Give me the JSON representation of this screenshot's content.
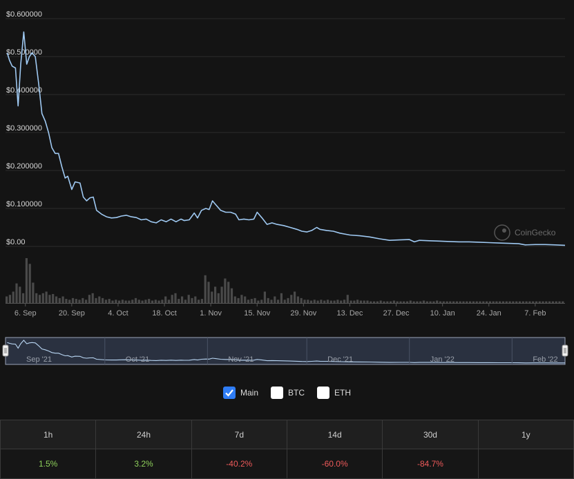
{
  "chart_data": {
    "type": "line",
    "y_tick_labels": [
      "$0.600000",
      "$0.500000",
      "$0.400000",
      "$0.300000",
      "$0.200000",
      "$0.100000",
      "$0.00"
    ],
    "ylim": [
      0,
      0.6
    ],
    "x_tick_labels": [
      "6. Sep",
      "20. Sep",
      "4. Oct",
      "18. Oct",
      "1. Nov",
      "15. Nov",
      "29. Nov",
      "13. Dec",
      "27. Dec",
      "10. Jan",
      "24. Jan",
      "7. Feb"
    ],
    "x_tick_day_index": [
      6,
      20,
      34,
      48,
      62,
      76,
      90,
      104,
      118,
      132,
      146,
      160
    ],
    "x_range_days": [
      0,
      169
    ],
    "grid": true,
    "series": [
      {
        "values": [
          [
            0.5,
            0.51
          ],
          [
            1.2,
            0.49
          ],
          [
            2,
            0.475
          ],
          [
            3,
            0.47
          ],
          [
            3.8,
            0.37
          ],
          [
            4.6,
            0.48
          ],
          [
            5.5,
            0.565
          ],
          [
            6.4,
            0.48
          ],
          [
            7.2,
            0.5
          ],
          [
            8,
            0.51
          ],
          [
            9,
            0.5
          ],
          [
            10,
            0.43
          ],
          [
            11,
            0.35
          ],
          [
            12,
            0.33
          ],
          [
            13,
            0.3
          ],
          [
            14,
            0.26
          ],
          [
            15,
            0.245
          ],
          [
            16,
            0.245
          ],
          [
            17,
            0.21
          ],
          [
            18,
            0.18
          ],
          [
            18.8,
            0.185
          ],
          [
            20,
            0.15
          ],
          [
            21,
            0.17
          ],
          [
            22.5,
            0.167
          ],
          [
            23.5,
            0.13
          ],
          [
            24.5,
            0.12
          ],
          [
            25.5,
            0.128
          ],
          [
            26.5,
            0.13
          ],
          [
            27.5,
            0.095
          ],
          [
            29,
            0.085
          ],
          [
            30.5,
            0.078
          ],
          [
            32,
            0.075
          ],
          [
            33.5,
            0.076
          ],
          [
            35,
            0.08
          ],
          [
            36.5,
            0.082
          ],
          [
            38,
            0.078
          ],
          [
            39.5,
            0.076
          ],
          [
            41,
            0.07
          ],
          [
            42.5,
            0.072
          ],
          [
            44,
            0.065
          ],
          [
            45.5,
            0.062
          ],
          [
            47,
            0.07
          ],
          [
            48.5,
            0.065
          ],
          [
            50,
            0.072
          ],
          [
            51.5,
            0.065
          ],
          [
            53,
            0.072
          ],
          [
            54,
            0.068
          ],
          [
            55.5,
            0.07
          ],
          [
            57,
            0.088
          ],
          [
            58,
            0.075
          ],
          [
            59.2,
            0.095
          ],
          [
            60.5,
            0.1
          ],
          [
            61.5,
            0.097
          ],
          [
            62.5,
            0.12
          ],
          [
            63.5,
            0.11
          ],
          [
            65,
            0.095
          ],
          [
            66.5,
            0.09
          ],
          [
            68,
            0.09
          ],
          [
            69.5,
            0.085
          ],
          [
            70.5,
            0.07
          ],
          [
            72,
            0.072
          ],
          [
            73.5,
            0.07
          ],
          [
            75,
            0.072
          ],
          [
            76,
            0.09
          ],
          [
            77.5,
            0.075
          ],
          [
            79,
            0.058
          ],
          [
            80.5,
            0.062
          ],
          [
            82,
            0.058
          ],
          [
            84,
            0.055
          ],
          [
            86,
            0.05
          ],
          [
            88,
            0.045
          ],
          [
            89.5,
            0.04
          ],
          [
            91,
            0.038
          ],
          [
            92.5,
            0.042
          ],
          [
            94,
            0.05
          ],
          [
            95,
            0.045
          ],
          [
            97,
            0.042
          ],
          [
            99,
            0.04
          ],
          [
            101,
            0.035
          ],
          [
            104,
            0.03
          ],
          [
            107,
            0.028
          ],
          [
            110,
            0.025
          ],
          [
            113,
            0.02
          ],
          [
            116,
            0.016
          ],
          [
            119,
            0.017
          ],
          [
            122,
            0.018
          ],
          [
            123.5,
            0.012
          ],
          [
            125,
            0.016
          ],
          [
            128,
            0.015
          ],
          [
            131,
            0.014
          ],
          [
            134,
            0.013
          ],
          [
            137,
            0.012
          ],
          [
            140,
            0.012
          ],
          [
            143,
            0.011
          ],
          [
            146,
            0.01
          ],
          [
            149,
            0.009
          ],
          [
            152,
            0.008
          ],
          [
            155,
            0.007
          ],
          [
            157,
            0.004
          ],
          [
            160,
            0.005
          ],
          [
            163,
            0.005
          ],
          [
            166,
            0.004
          ],
          [
            169,
            0.003
          ]
        ]
      }
    ],
    "volume_bars": [
      8,
      10,
      14,
      24,
      20,
      12,
      55,
      48,
      25,
      12,
      10,
      12,
      14,
      10,
      11,
      8,
      6,
      8,
      5,
      4,
      6,
      5,
      4,
      6,
      4,
      10,
      12,
      6,
      8,
      6,
      4,
      5,
      3,
      4,
      3,
      4,
      3,
      3,
      4,
      6,
      4,
      3,
      4,
      5,
      3,
      4,
      3,
      4,
      8,
      4,
      10,
      12,
      5,
      8,
      4,
      10,
      6,
      8,
      4,
      5,
      34,
      26,
      14,
      20,
      12,
      20,
      30,
      26,
      18,
      8,
      6,
      10,
      8,
      4,
      5,
      6,
      3,
      4,
      14,
      6,
      4,
      8,
      4,
      12,
      4,
      6,
      10,
      14,
      8,
      6,
      4,
      4,
      3,
      4,
      3,
      4,
      3,
      4,
      3,
      3,
      4,
      3,
      4,
      10,
      3,
      3,
      4,
      3,
      3,
      3,
      2,
      2,
      2,
      3,
      2,
      2,
      2,
      3,
      2,
      2,
      2,
      2,
      3,
      2,
      2,
      2,
      3,
      2,
      2,
      2,
      3,
      2,
      2,
      2,
      2,
      2,
      2,
      2,
      2,
      2,
      2,
      2,
      2,
      2,
      2,
      2,
      2,
      2,
      2,
      2,
      2,
      2,
      2,
      2,
      2,
      2,
      2,
      2,
      2,
      2,
      2,
      2,
      2,
      2,
      2,
      2,
      2,
      2,
      2
    ],
    "navigator_labels": [
      "Sep '21",
      "Oct '21",
      "Nov '21",
      "Dec '21",
      "Jan '22",
      "Feb '22"
    ],
    "navigator_label_day_index": [
      0,
      30,
      61,
      91,
      122,
      153
    ],
    "watermark": "CoinGecko",
    "line_color": "#9fc9f2"
  },
  "legend": [
    {
      "label": "Main",
      "checked": true
    },
    {
      "label": "BTC",
      "checked": false
    },
    {
      "label": "ETH",
      "checked": false
    }
  ],
  "change_table": {
    "headers": [
      "1h",
      "24h",
      "7d",
      "14d",
      "30d",
      "1y"
    ],
    "values": [
      "1.5%",
      "3.2%",
      "-40.2%",
      "-60.0%",
      "-84.7%",
      ""
    ]
  }
}
